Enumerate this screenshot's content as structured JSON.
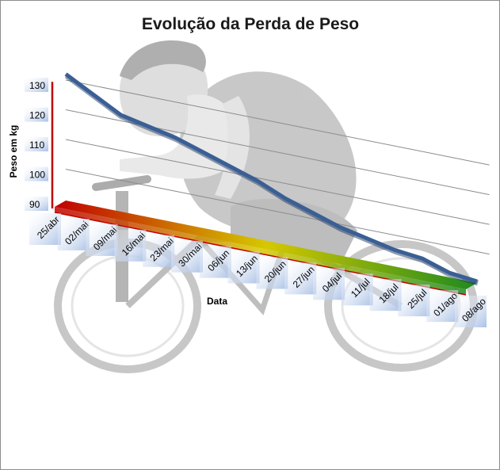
{
  "chart_data": {
    "type": "line",
    "title": "Evolução da Perda de Peso",
    "ylabel": "Peso em kg",
    "xlabel": "Data",
    "ylim": [
      90,
      130
    ],
    "yticks": [
      90,
      100,
      110,
      120,
      130
    ],
    "categories": [
      "25/abr",
      "02/mai",
      "09/mai",
      "16/mai",
      "23/mai",
      "30/mai",
      "06/jun",
      "13/jun",
      "20/jun",
      "27/jun",
      "04/jul",
      "11/jul",
      "18/jul",
      "25/jul",
      "01/ago",
      "08/ago"
    ],
    "series": [
      {
        "values": [
          132,
          127,
          122,
          120,
          118,
          115,
          112,
          109,
          105,
          102,
          99,
          97,
          95,
          94,
          91,
          90
        ]
      }
    ],
    "grid": true,
    "legend": "none",
    "style": "3d"
  },
  "colors": {
    "line": "#3a5f95",
    "axis": "#c00000",
    "gridline": "#8c8c8c",
    "floor_start": "#c00000",
    "floor_mid": "#d6c800",
    "floor_end": "#1e8a1e",
    "label_box": "#aac1e6"
  },
  "background": {
    "description_icon": "cyclist-illustration"
  }
}
